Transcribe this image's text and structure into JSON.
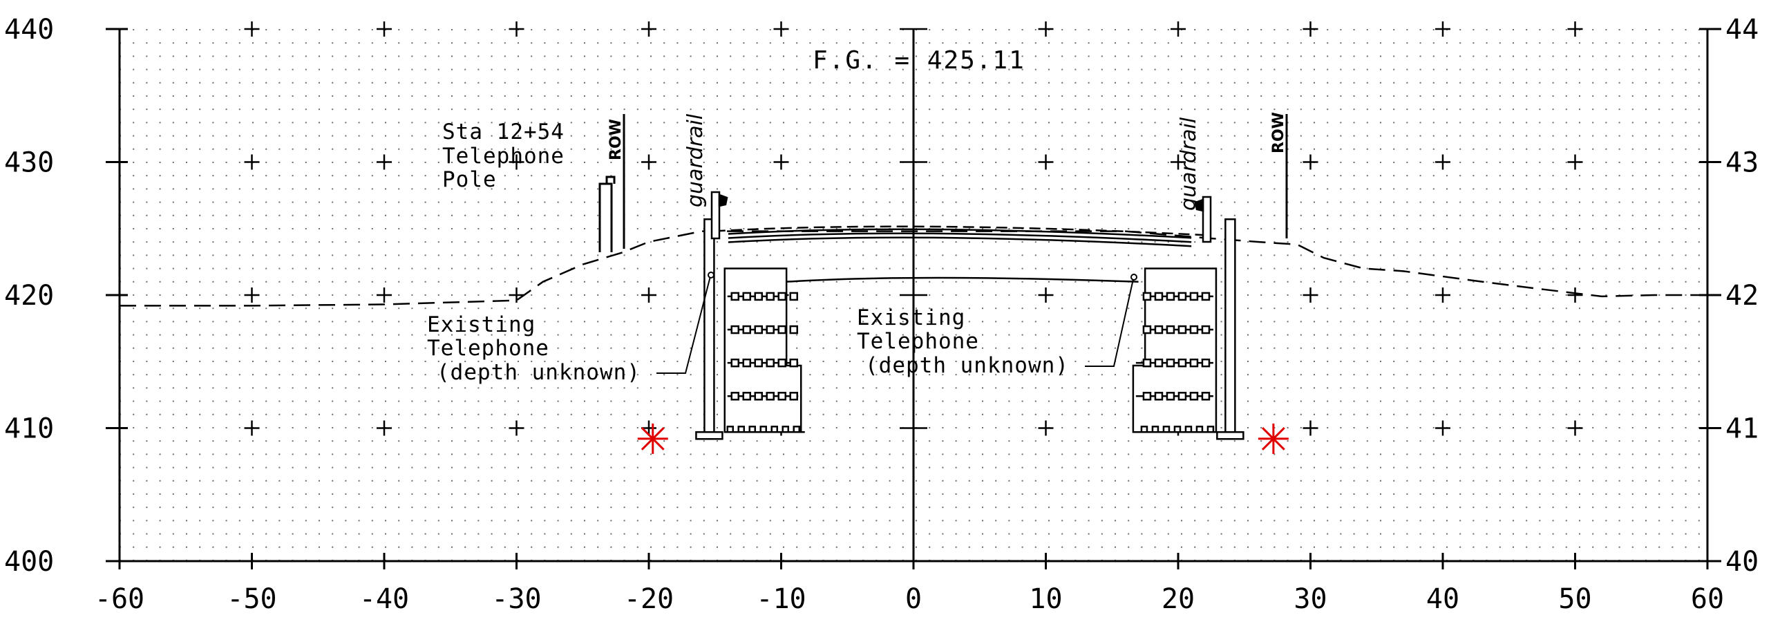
{
  "chart_data": {
    "type": "diagram",
    "title": "",
    "xlim": [
      -60,
      60
    ],
    "ylim": [
      400,
      440
    ],
    "x_ticks": [
      "-60",
      "-50",
      "-40",
      "-30",
      "-20",
      "-10",
      "0",
      "10",
      "20",
      "30",
      "40",
      "50",
      "60"
    ],
    "y_ticks_left": [
      "400",
      "410",
      "420",
      "430",
      "440"
    ],
    "y_ticks_right": [
      "40",
      "41",
      "42",
      "43",
      "44"
    ],
    "finished_grade_label": "F.G. = 425.11",
    "existing_ground": [
      [
        -60,
        419.2
      ],
      [
        -50,
        419.2
      ],
      [
        -40,
        419.3
      ],
      [
        -30,
        419.6
      ],
      [
        -28,
        421
      ],
      [
        -25,
        422.3
      ],
      [
        -22,
        423.2
      ],
      [
        -20,
        424
      ],
      [
        -16,
        424.8
      ],
      [
        16,
        424.8
      ],
      [
        22,
        424.3
      ],
      [
        26,
        424
      ],
      [
        29,
        423.8
      ],
      [
        31,
        422.8
      ],
      [
        34,
        422
      ],
      [
        37,
        421.8
      ],
      [
        43,
        421
      ],
      [
        47,
        420.5
      ],
      [
        52,
        419.9
      ],
      [
        56,
        420
      ],
      [
        60,
        420
      ]
    ],
    "pavement_left_edge": [
      -14,
      424.6
    ],
    "pavement_crown": [
      0,
      425.11
    ],
    "pavement_right_edge": [
      21,
      424.3
    ],
    "walls": [
      {
        "side": "left",
        "top": 422,
        "bottom": 409.7
      },
      {
        "side": "right",
        "top": 422,
        "bottom": 409.7
      }
    ],
    "annotations": {
      "pole_label": [
        "Sta 12+54",
        "Telephone",
        "Pole"
      ],
      "row_label": "ROW",
      "guardrail_label": "guardrail",
      "utility_label": [
        "Existing",
        "Telephone",
        "(depth unknown)"
      ]
    },
    "markers": [
      {
        "x": -19.7,
        "y": 409.2,
        "color": "#e00000"
      },
      {
        "x": 27.2,
        "y": 409.2,
        "color": "#e00000"
      }
    ]
  }
}
